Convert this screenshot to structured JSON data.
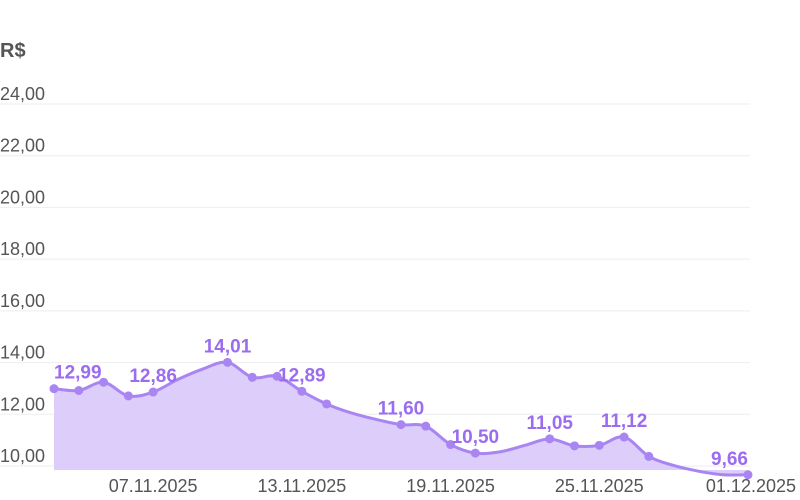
{
  "chart_data": {
    "type": "area",
    "unit": "R$",
    "ylim": [
      9.66,
      24
    ],
    "y_ticks": [
      "10,00",
      "12,00",
      "14,00",
      "16,00",
      "18,00",
      "20,00",
      "22,00",
      "24,00"
    ],
    "y_tick_values": [
      10,
      12,
      14,
      16,
      18,
      20,
      22,
      24
    ],
    "x_ticks": [
      {
        "label": "07.11.2025",
        "index": 4
      },
      {
        "label": "13.11.2025",
        "index": 10
      },
      {
        "label": "19.11.2025",
        "index": 16
      },
      {
        "label": "25.11.2025",
        "index": 22
      },
      {
        "label": "01.12.2025",
        "index": 28
      }
    ],
    "dates": [
      "03.11.2025",
      "04.11.2025",
      "05.11.2025",
      "06.11.2025",
      "07.11.2025",
      "08.11.2025",
      "09.11.2025",
      "10.11.2025",
      "11.11.2025",
      "12.11.2025",
      "13.11.2025",
      "14.11.2025",
      "15.11.2025",
      "16.11.2025",
      "17.11.2025",
      "18.11.2025",
      "19.11.2025",
      "20.11.2025",
      "21.11.2025",
      "22.11.2025",
      "23.11.2025",
      "24.11.2025",
      "25.11.2025",
      "26.11.2025",
      "27.11.2025",
      "28.11.2025",
      "29.11.2025",
      "30.11.2025",
      "01.12.2025"
    ],
    "values": [
      12.99,
      12.92,
      13.24,
      12.71,
      12.86,
      13.35,
      13.75,
      14.01,
      13.43,
      13.47,
      12.89,
      12.4,
      12.05,
      11.8,
      11.6,
      11.54,
      10.83,
      10.5,
      10.55,
      10.8,
      11.05,
      10.78,
      10.8,
      11.12,
      10.37,
      10.02,
      9.8,
      9.66,
      9.66
    ],
    "point_values": [
      12.99,
      12.92,
      13.24,
      12.71,
      12.86,
      null,
      null,
      14.01,
      13.43,
      13.47,
      12.89,
      12.4,
      null,
      null,
      11.6,
      11.54,
      10.83,
      10.5,
      null,
      null,
      11.05,
      10.78,
      10.8,
      11.12,
      10.37,
      null,
      null,
      null,
      9.66
    ],
    "data_labels": [
      {
        "index": 0,
        "text": "12,99"
      },
      {
        "index": 4,
        "text": "12,86"
      },
      {
        "index": 7,
        "text": "14,01"
      },
      {
        "index": 10,
        "text": "12,89"
      },
      {
        "index": 14,
        "text": "11,60"
      },
      {
        "index": 17,
        "text": "10,50"
      },
      {
        "index": 20,
        "text": "11,05"
      },
      {
        "index": 23,
        "text": "11,12"
      },
      {
        "index": 28,
        "text": "9,66"
      }
    ],
    "colors": {
      "line": "#a985f2",
      "fill": "#dccdfb",
      "label": "#9b6cf0",
      "grid": "#eeeeee",
      "axis_text": "#555555"
    },
    "grid": true
  }
}
